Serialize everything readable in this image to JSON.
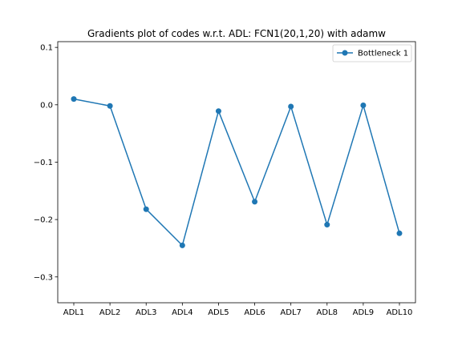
{
  "chart_data": {
    "type": "line",
    "title": "Gradients plot of codes w.r.t. ADL: FCN1(20,1,20) with adamw",
    "xlabel": "",
    "ylabel": "",
    "categories": [
      "ADL1",
      "ADL2",
      "ADL3",
      "ADL4",
      "ADL5",
      "ADL6",
      "ADL7",
      "ADL8",
      "ADL9",
      "ADL10"
    ],
    "series": [
      {
        "name": "Bottleneck 1",
        "color": "#1f77b4",
        "marker": "circle",
        "values": [
          0.01,
          -0.002,
          -0.182,
          -0.245,
          -0.011,
          -0.169,
          -0.003,
          -0.209,
          -0.001,
          -0.224
        ]
      }
    ],
    "ylim": [
      -0.345,
      0.11
    ],
    "yticks": [
      0.1,
      0.0,
      -0.1,
      -0.2,
      -0.3
    ],
    "ytick_labels": [
      "0.1",
      "0.0",
      "−0.1",
      "−0.2",
      "−0.3"
    ],
    "grid": false,
    "legend_position": "top-right"
  }
}
